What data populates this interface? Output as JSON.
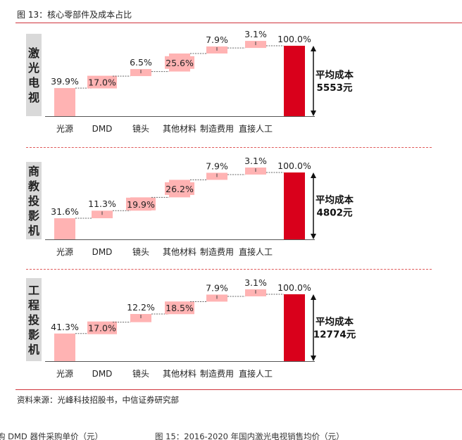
{
  "title": "图 13：核心零部件及成本占比",
  "source": "资料来源：光峰科技招股书，中信证券研究部",
  "footer_left": "购 DMD 器件采购单价（元）",
  "footer_right": "图 15：2016-2020 年国内激光电视销售均价（元）",
  "colors": {
    "component": "#ffb3b3",
    "total": "#d9001b",
    "label_box": "#ffb3b3",
    "side_box": "#d9d9d9",
    "rule": "#d0343c"
  },
  "chart_data": [
    {
      "type": "waterfall",
      "group_label": "激光电视",
      "categories": [
        "光源",
        "DMD",
        "镜头",
        "其他材料",
        "制造费用",
        "直接人工"
      ],
      "values": [
        39.9,
        17.0,
        6.5,
        25.6,
        7.9,
        3.1
      ],
      "value_labels": [
        "39.9%",
        "17.0%",
        "6.5%",
        "25.6%",
        "7.9%",
        "3.1%"
      ],
      "total_label": "100.0%",
      "total_value": 100.0,
      "avg_cost_title": "平均成本",
      "avg_cost_value": "5553元",
      "ylim": [
        0,
        100
      ]
    },
    {
      "type": "waterfall",
      "group_label": "商教投影机",
      "categories": [
        "光源",
        "DMD",
        "镜头",
        "其他材料",
        "制造费用",
        "直接人工"
      ],
      "values": [
        31.6,
        11.3,
        19.9,
        26.2,
        7.9,
        3.1
      ],
      "value_labels": [
        "31.6%",
        "11.3%",
        "19.9%",
        "26.2%",
        "7.9%",
        "3.1%"
      ],
      "total_label": "100.0%",
      "total_value": 100.0,
      "avg_cost_title": "平均成本",
      "avg_cost_value": "4802元",
      "ylim": [
        0,
        100
      ]
    },
    {
      "type": "waterfall",
      "group_label": "工程投影机",
      "categories": [
        "光源",
        "DMD",
        "镜头",
        "其他材料",
        "制造费用",
        "直接人工"
      ],
      "values": [
        41.3,
        17.0,
        12.2,
        18.5,
        7.9,
        3.1
      ],
      "value_labels": [
        "41.3%",
        "17.0%",
        "12.2%",
        "18.5%",
        "7.9%",
        "3.1%"
      ],
      "total_label": "100.0%",
      "total_value": 100.0,
      "avg_cost_title": "平均成本",
      "avg_cost_value": "12774元",
      "ylim": [
        0,
        100
      ]
    }
  ]
}
